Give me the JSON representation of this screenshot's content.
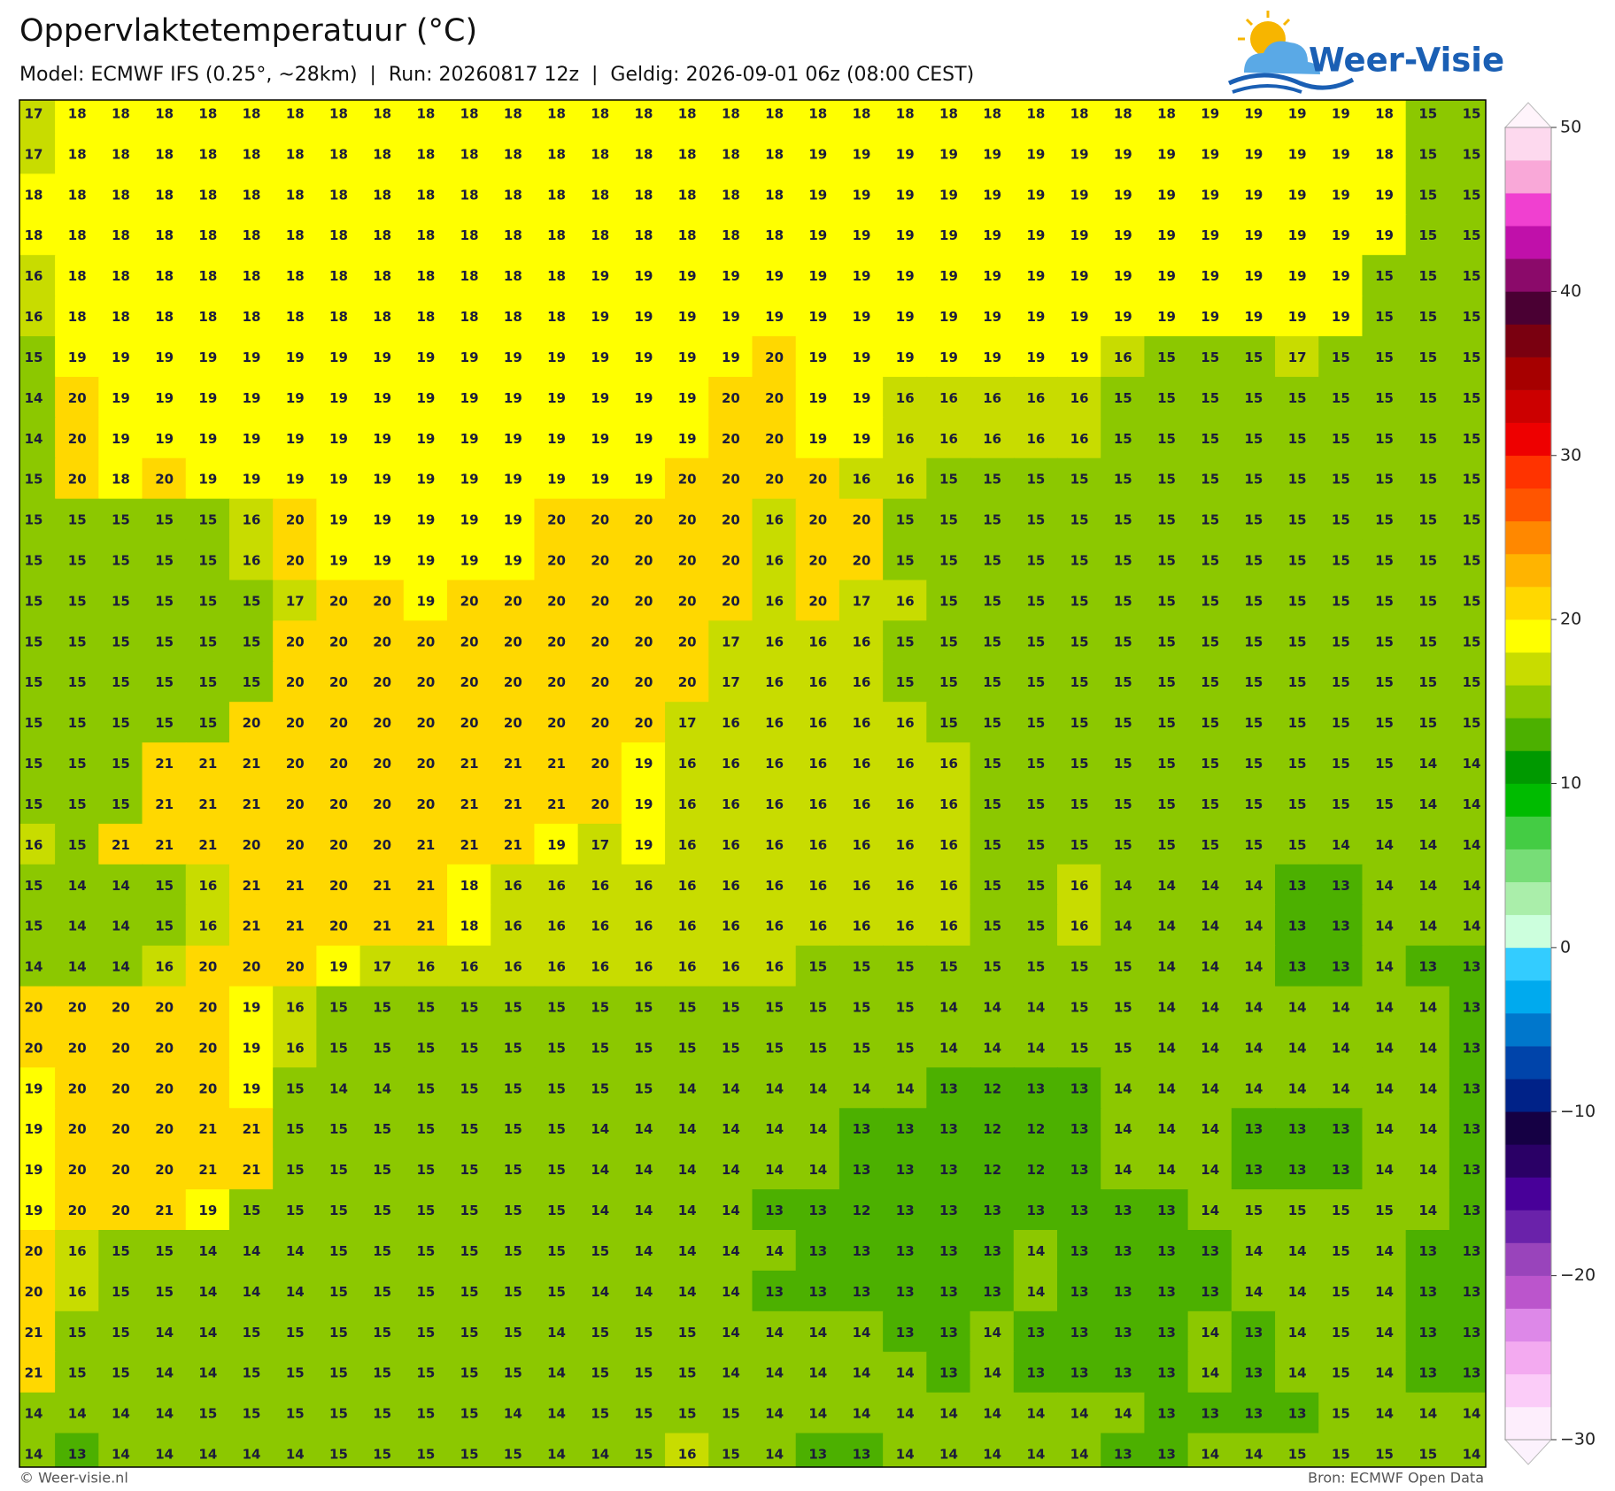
{
  "header": {
    "title": "Oppervlaktetemperatuur (°C)",
    "subtitle": "Model: ECMWF IFS (0.25°, ~28km)  |  Run: 20260817 12z  |  Geldig: 2026-09-01 06z (08:00 CEST)"
  },
  "logo": {
    "text": "Weer-Visie"
  },
  "footer": {
    "left": "© Weer-visie.nl",
    "right": "Bron: ECMWF Open Data"
  },
  "chart_data": {
    "type": "grid-map",
    "values": [
      [
        17,
        18,
        18,
        18,
        18,
        18,
        18,
        18,
        18,
        18,
        18,
        18,
        18,
        18,
        18,
        18,
        18,
        18,
        18,
        18,
        18,
        18,
        18,
        18,
        18,
        18,
        18,
        19,
        19,
        19,
        19,
        18,
        15,
        15
      ],
      [
        17,
        18,
        18,
        18,
        18,
        18,
        18,
        18,
        18,
        18,
        18,
        18,
        18,
        18,
        18,
        18,
        18,
        18,
        19,
        19,
        19,
        19,
        19,
        19,
        19,
        19,
        19,
        19,
        19,
        19,
        19,
        18,
        15,
        15
      ],
      [
        18,
        18,
        18,
        18,
        18,
        18,
        18,
        18,
        18,
        18,
        18,
        18,
        18,
        18,
        18,
        18,
        18,
        18,
        19,
        19,
        19,
        19,
        19,
        19,
        19,
        19,
        19,
        19,
        19,
        19,
        19,
        19,
        15,
        15
      ],
      [
        18,
        18,
        18,
        18,
        18,
        18,
        18,
        18,
        18,
        18,
        18,
        18,
        18,
        18,
        18,
        18,
        18,
        18,
        19,
        19,
        19,
        19,
        19,
        19,
        19,
        19,
        19,
        19,
        19,
        19,
        19,
        19,
        15,
        15
      ],
      [
        16,
        18,
        18,
        18,
        18,
        18,
        18,
        18,
        18,
        18,
        18,
        18,
        18,
        19,
        19,
        19,
        19,
        19,
        19,
        19,
        19,
        19,
        19,
        19,
        19,
        19,
        19,
        19,
        19,
        19,
        19,
        15,
        15,
        15
      ],
      [
        16,
        18,
        18,
        18,
        18,
        18,
        18,
        18,
        18,
        18,
        18,
        18,
        18,
        19,
        19,
        19,
        19,
        19,
        19,
        19,
        19,
        19,
        19,
        19,
        19,
        19,
        19,
        19,
        19,
        19,
        19,
        15,
        15,
        15
      ],
      [
        15,
        19,
        19,
        19,
        19,
        19,
        19,
        19,
        19,
        19,
        19,
        19,
        19,
        19,
        19,
        19,
        19,
        20,
        19,
        19,
        19,
        19,
        19,
        19,
        19,
        16,
        15,
        15,
        15,
        17,
        15,
        15,
        15,
        15
      ],
      [
        14,
        20,
        19,
        19,
        19,
        19,
        19,
        19,
        19,
        19,
        19,
        19,
        19,
        19,
        19,
        19,
        20,
        20,
        19,
        19,
        16,
        16,
        16,
        16,
        16,
        15,
        15,
        15,
        15,
        15,
        15,
        15,
        15,
        15
      ],
      [
        14,
        20,
        19,
        19,
        19,
        19,
        19,
        19,
        19,
        19,
        19,
        19,
        19,
        19,
        19,
        19,
        20,
        20,
        19,
        19,
        16,
        16,
        16,
        16,
        16,
        15,
        15,
        15,
        15,
        15,
        15,
        15,
        15,
        15
      ],
      [
        15,
        20,
        18,
        20,
        19,
        19,
        19,
        19,
        19,
        19,
        19,
        19,
        19,
        19,
        19,
        20,
        20,
        20,
        20,
        16,
        16,
        15,
        15,
        15,
        15,
        15,
        15,
        15,
        15,
        15,
        15,
        15,
        15,
        15
      ],
      [
        15,
        15,
        15,
        15,
        15,
        16,
        20,
        19,
        19,
        19,
        19,
        19,
        20,
        20,
        20,
        20,
        20,
        16,
        20,
        20,
        15,
        15,
        15,
        15,
        15,
        15,
        15,
        15,
        15,
        15,
        15,
        15,
        15,
        15
      ],
      [
        15,
        15,
        15,
        15,
        15,
        16,
        20,
        19,
        19,
        19,
        19,
        19,
        20,
        20,
        20,
        20,
        20,
        16,
        20,
        20,
        15,
        15,
        15,
        15,
        15,
        15,
        15,
        15,
        15,
        15,
        15,
        15,
        15,
        15
      ],
      [
        15,
        15,
        15,
        15,
        15,
        15,
        17,
        20,
        20,
        19,
        20,
        20,
        20,
        20,
        20,
        20,
        20,
        16,
        20,
        17,
        16,
        15,
        15,
        15,
        15,
        15,
        15,
        15,
        15,
        15,
        15,
        15,
        15,
        15
      ],
      [
        15,
        15,
        15,
        15,
        15,
        15,
        20,
        20,
        20,
        20,
        20,
        20,
        20,
        20,
        20,
        20,
        17,
        16,
        16,
        16,
        15,
        15,
        15,
        15,
        15,
        15,
        15,
        15,
        15,
        15,
        15,
        15,
        15,
        15
      ],
      [
        15,
        15,
        15,
        15,
        15,
        15,
        20,
        20,
        20,
        20,
        20,
        20,
        20,
        20,
        20,
        20,
        17,
        16,
        16,
        16,
        15,
        15,
        15,
        15,
        15,
        15,
        15,
        15,
        15,
        15,
        15,
        15,
        15,
        15
      ],
      [
        15,
        15,
        15,
        15,
        15,
        20,
        20,
        20,
        20,
        20,
        20,
        20,
        20,
        20,
        20,
        17,
        16,
        16,
        16,
        16,
        16,
        15,
        15,
        15,
        15,
        15,
        15,
        15,
        15,
        15,
        15,
        15,
        15,
        15
      ],
      [
        15,
        15,
        15,
        21,
        21,
        21,
        20,
        20,
        20,
        20,
        21,
        21,
        21,
        20,
        19,
        16,
        16,
        16,
        16,
        16,
        16,
        16,
        15,
        15,
        15,
        15,
        15,
        15,
        15,
        15,
        15,
        15,
        14,
        14
      ],
      [
        15,
        15,
        15,
        21,
        21,
        21,
        20,
        20,
        20,
        20,
        21,
        21,
        21,
        20,
        19,
        16,
        16,
        16,
        16,
        16,
        16,
        16,
        15,
        15,
        15,
        15,
        15,
        15,
        15,
        15,
        15,
        15,
        14,
        14
      ],
      [
        16,
        15,
        21,
        21,
        21,
        20,
        20,
        20,
        20,
        21,
        21,
        21,
        19,
        17,
        19,
        16,
        16,
        16,
        16,
        16,
        16,
        16,
        15,
        15,
        15,
        15,
        15,
        15,
        15,
        15,
        14,
        14,
        14,
        14
      ],
      [
        15,
        14,
        14,
        15,
        16,
        21,
        21,
        20,
        21,
        21,
        18,
        16,
        16,
        16,
        16,
        16,
        16,
        16,
        16,
        16,
        16,
        16,
        15,
        15,
        16,
        14,
        14,
        14,
        14,
        13,
        13,
        14,
        14,
        14
      ],
      [
        15,
        14,
        14,
        15,
        16,
        21,
        21,
        20,
        21,
        21,
        18,
        16,
        16,
        16,
        16,
        16,
        16,
        16,
        16,
        16,
        16,
        16,
        15,
        15,
        16,
        14,
        14,
        14,
        14,
        13,
        13,
        14,
        14,
        14
      ],
      [
        14,
        14,
        14,
        16,
        20,
        20,
        20,
        19,
        17,
        16,
        16,
        16,
        16,
        16,
        16,
        16,
        16,
        16,
        15,
        15,
        15,
        15,
        15,
        15,
        15,
        15,
        14,
        14,
        14,
        13,
        13,
        14,
        13,
        13
      ],
      [
        20,
        20,
        20,
        20,
        20,
        19,
        16,
        15,
        15,
        15,
        15,
        15,
        15,
        15,
        15,
        15,
        15,
        15,
        15,
        15,
        15,
        14,
        14,
        14,
        15,
        15,
        14,
        14,
        14,
        14,
        14,
        14,
        14,
        13
      ],
      [
        20,
        20,
        20,
        20,
        20,
        19,
        16,
        15,
        15,
        15,
        15,
        15,
        15,
        15,
        15,
        15,
        15,
        15,
        15,
        15,
        15,
        14,
        14,
        14,
        15,
        15,
        14,
        14,
        14,
        14,
        14,
        14,
        14,
        13
      ],
      [
        19,
        20,
        20,
        20,
        20,
        19,
        15,
        14,
        14,
        15,
        15,
        15,
        15,
        15,
        15,
        14,
        14,
        14,
        14,
        14,
        14,
        13,
        12,
        13,
        13,
        14,
        14,
        14,
        14,
        14,
        14,
        14,
        14,
        13
      ],
      [
        19,
        20,
        20,
        20,
        21,
        21,
        15,
        15,
        15,
        15,
        15,
        15,
        15,
        14,
        14,
        14,
        14,
        14,
        14,
        13,
        13,
        13,
        12,
        12,
        13,
        14,
        14,
        14,
        13,
        13,
        13,
        14,
        14,
        13
      ],
      [
        19,
        20,
        20,
        20,
        21,
        21,
        15,
        15,
        15,
        15,
        15,
        15,
        15,
        14,
        14,
        14,
        14,
        14,
        14,
        13,
        13,
        13,
        12,
        12,
        13,
        14,
        14,
        14,
        13,
        13,
        13,
        14,
        14,
        13
      ],
      [
        19,
        20,
        20,
        21,
        19,
        15,
        15,
        15,
        15,
        15,
        15,
        15,
        15,
        14,
        14,
        14,
        14,
        13,
        13,
        12,
        13,
        13,
        13,
        13,
        13,
        13,
        13,
        14,
        15,
        15,
        15,
        15,
        14,
        13
      ],
      [
        20,
        16,
        15,
        15,
        14,
        14,
        14,
        15,
        15,
        15,
        15,
        15,
        15,
        15,
        14,
        14,
        14,
        14,
        13,
        13,
        13,
        13,
        13,
        14,
        13,
        13,
        13,
        13,
        14,
        14,
        15,
        14,
        13,
        13
      ],
      [
        20,
        16,
        15,
        15,
        14,
        14,
        14,
        15,
        15,
        15,
        15,
        15,
        15,
        14,
        14,
        14,
        14,
        13,
        13,
        13,
        13,
        13,
        13,
        14,
        13,
        13,
        13,
        13,
        14,
        14,
        15,
        14,
        13,
        13
      ],
      [
        21,
        15,
        15,
        14,
        14,
        15,
        15,
        15,
        15,
        15,
        15,
        15,
        14,
        15,
        15,
        15,
        14,
        14,
        14,
        14,
        13,
        13,
        14,
        13,
        13,
        13,
        13,
        14,
        13,
        14,
        15,
        14,
        13,
        13
      ],
      [
        21,
        15,
        15,
        14,
        14,
        15,
        15,
        15,
        15,
        15,
        15,
        15,
        14,
        15,
        15,
        15,
        14,
        14,
        14,
        14,
        14,
        13,
        14,
        13,
        13,
        13,
        13,
        14,
        13,
        14,
        15,
        14,
        13,
        13
      ],
      [
        14,
        14,
        14,
        14,
        15,
        15,
        15,
        15,
        15,
        15,
        15,
        14,
        14,
        15,
        15,
        15,
        15,
        14,
        14,
        14,
        14,
        14,
        14,
        14,
        14,
        14,
        13,
        13,
        13,
        13,
        15,
        14,
        14,
        14
      ],
      [
        14,
        13,
        14,
        14,
        14,
        14,
        14,
        15,
        15,
        15,
        15,
        15,
        14,
        14,
        15,
        16,
        15,
        14,
        13,
        13,
        14,
        14,
        14,
        14,
        14,
        13,
        13,
        14,
        14,
        15,
        15,
        15,
        15,
        14
      ]
    ],
    "clim": [
      -30,
      50
    ],
    "cticks": [
      50,
      40,
      30,
      20,
      10,
      0,
      {
        "value": -10,
        "label": "−10"
      },
      {
        "value": -20,
        "label": "−20"
      },
      {
        "value": -30,
        "label": "−30"
      }
    ],
    "colors": [
      "#fdeefc",
      "#fbccf8",
      "#f3aaf0",
      "#dd88e8",
      "#bb55cc",
      "#9944bb",
      "#6a22aa",
      "#480099",
      "#2a0066",
      "#150044",
      "#002288",
      "#0044aa",
      "#0077cc",
      "#00aaee",
      "#33ccff",
      "#ccffdd",
      "#aaeeaa",
      "#77dd77",
      "#44cc44",
      "#00bb00",
      "#009900",
      "#4cb000",
      "#8cc800",
      "#c8dc00",
      "#ffff00",
      "#ffd800",
      "#ffb400",
      "#ff8800",
      "#ff5500",
      "#ff3300",
      "#ee0000",
      "#cc0000",
      "#a60000",
      "#7a0010",
      "#4a0033",
      "#8b0a6a",
      "#c010aa",
      "#f040d0",
      "#f9a8d8",
      "#fdd9ee"
    ]
  }
}
